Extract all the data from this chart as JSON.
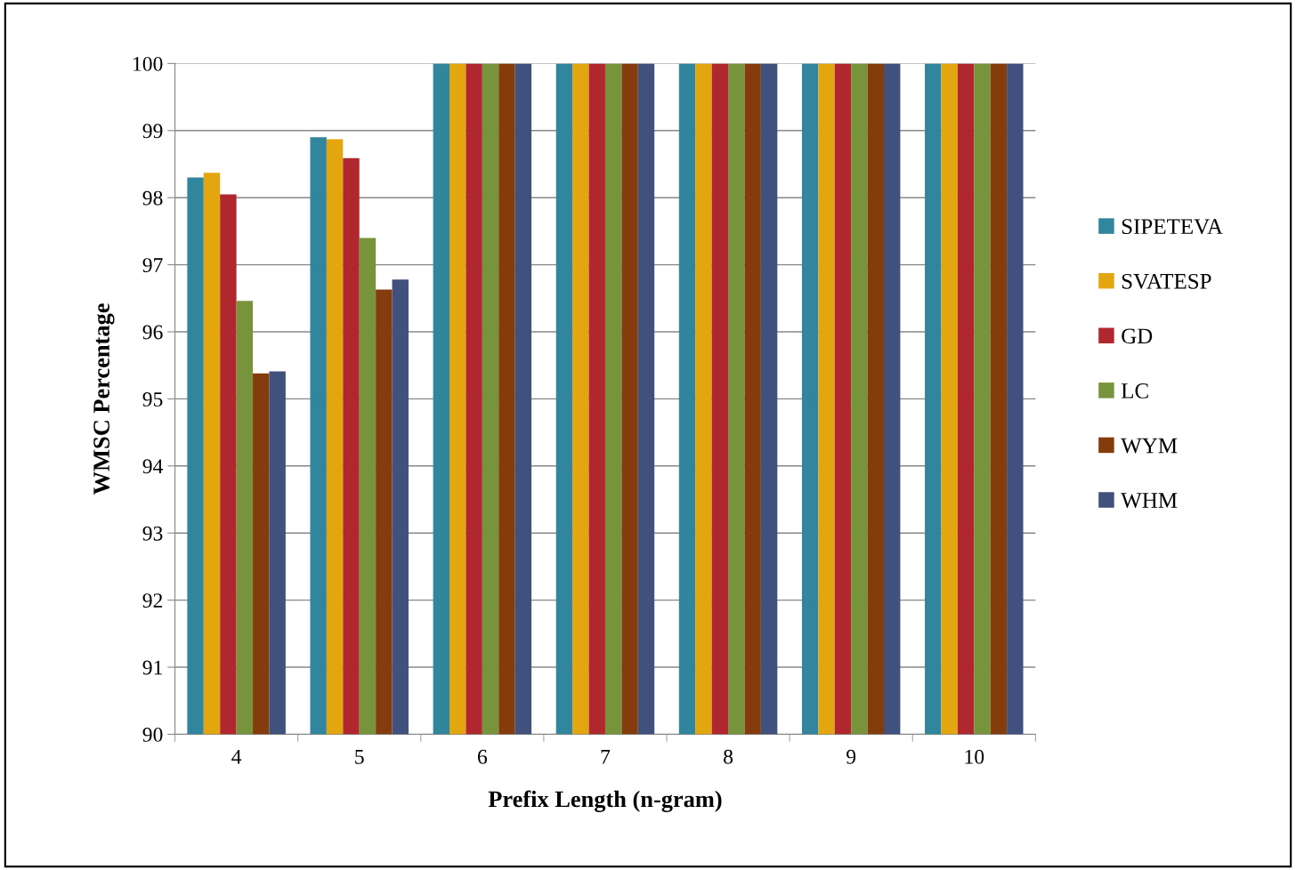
{
  "chart_data": {
    "type": "bar",
    "xlabel": "Prefix Length (n-gram)",
    "ylabel": "WMSC Percentage",
    "categories": [
      "4",
      "5",
      "6",
      "7",
      "8",
      "9",
      "10"
    ],
    "series": [
      {
        "name": "SIPETEVA",
        "color": "#31859c",
        "values": [
          98.3,
          98.9,
          100,
          100,
          100,
          100,
          100
        ]
      },
      {
        "name": "SVATESP",
        "color": "#e3a60f",
        "values": [
          98.37,
          98.87,
          100,
          100,
          100,
          100,
          100
        ]
      },
      {
        "name": "GD",
        "color": "#b0282e",
        "values": [
          98.05,
          98.59,
          100,
          100,
          100,
          100,
          100
        ]
      },
      {
        "name": "LC",
        "color": "#77933c",
        "values": [
          96.46,
          97.4,
          100,
          100,
          100,
          100,
          100
        ]
      },
      {
        "name": "WYM",
        "color": "#843c0c",
        "values": [
          95.38,
          96.63,
          100,
          100,
          100,
          100,
          100
        ]
      },
      {
        "name": "WHM",
        "color": "#3f517c",
        "values": [
          95.41,
          96.78,
          100,
          100,
          100,
          100,
          100
        ]
      }
    ],
    "ylim": [
      90,
      100
    ],
    "yticks": [
      90,
      91,
      92,
      93,
      94,
      95,
      96,
      97,
      98,
      99,
      100
    ],
    "grid": "y",
    "legend": "right"
  }
}
